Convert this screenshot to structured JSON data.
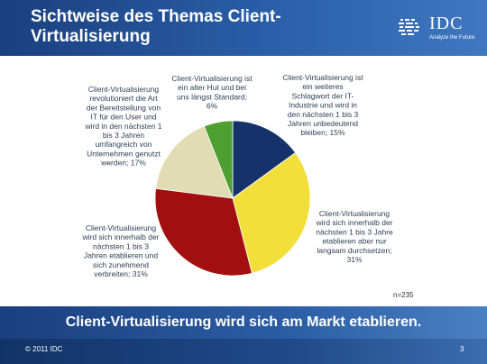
{
  "header": {
    "title": "Sichtweise des Themas Client-Virtualisierung"
  },
  "logo": {
    "name": "IDC",
    "tagline": "Analyze the Future",
    "icon": "idc-globe-icon"
  },
  "chart_data": {
    "type": "pie",
    "slices": [
      {
        "label": "Client-Virtualisierung ist ein weiteres Schlagwort der IT-Industrie und wird in den  nächsten 1 bis 3 Jahren unbedeutend bleiben; 15%",
        "value": 15,
        "color": "#15326a"
      },
      {
        "label": "Client-Virtualisierung wird sich innerhalb der nächsten 1 bis 3 Jahre etablieren aber nur langsam durchsetzen; 31%",
        "value": 31,
        "color": "#f3df3a"
      },
      {
        "label": "Client-Virtualisierung wird sich innerhalb der nächsten 1 bis 3 Jahren etablieren und sich zunehmend verbreiten; 31%",
        "value": 31,
        "color": "#a30f0f"
      },
      {
        "label": "Client-Virtualisierung revolutioniert die Art der Bereitstellung von IT für den User und wird in den nächsten 1 bis 3 Jahren umfangreich von Unternehmen genutzt werden; 17%",
        "value": 17,
        "color": "#e2dcb4"
      },
      {
        "label": "Client-Virtualisierung ist ein alter Hut und bei uns längst Standard; 6%",
        "value": 6,
        "color": "#4e9f2f"
      }
    ],
    "label_lines": [
      [
        "Client-Virtualisierung ist",
        "ein weiteres",
        "Schlagwort der IT-",
        "Industrie und wird in",
        "den  nächsten 1 bis 3",
        "Jahren unbedeutend",
        "bleiben; 15%"
      ],
      [
        "Client-Virtualisierung",
        "wird sich innerhalb der",
        "nächsten 1 bis 3 Jahre",
        "etablieren aber nur",
        "langsam durchsetzen;",
        "31%"
      ],
      [
        "Client-Virtualisierung",
        "wird sich innerhalb der",
        "nächsten 1 bis 3",
        "Jahren etablieren und",
        "sich zunehmend",
        "verbreiten; 31%"
      ],
      [
        "Client-Virtualisierung",
        "revolutioniert die Art",
        "der Bereitstellung von",
        "IT für den User und",
        "wird in den nächsten 1",
        "bis 3 Jahren",
        "umfangreich von",
        "Unternehmen genutzt",
        "werden; 17%"
      ],
      [
        "Client-Virtualisierung ist",
        "ein alter Hut und bei",
        "uns längst Standard;",
        "6%"
      ]
    ],
    "sample": "n=235"
  },
  "banner": {
    "text": "Client-Virtualisierung wird sich am Markt etablieren."
  },
  "footer": {
    "copyright": "© 2011 IDC",
    "page": "3"
  }
}
